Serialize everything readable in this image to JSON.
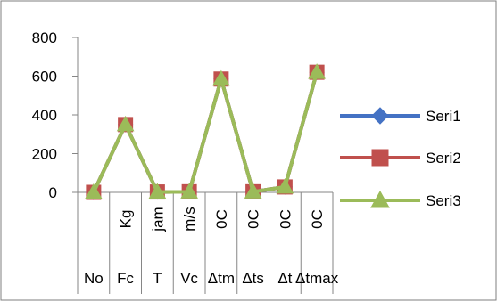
{
  "chart_data": {
    "type": "line",
    "categories": [
      {
        "top": "",
        "bottom": "No"
      },
      {
        "top": "Kg",
        "bottom": "Fc"
      },
      {
        "top": "jam",
        "bottom": "T"
      },
      {
        "top": "m/s",
        "bottom": "Vc"
      },
      {
        "top": "0C",
        "bottom": "Δtm"
      },
      {
        "top": "0C",
        "bottom": "Δts"
      },
      {
        "top": "0C",
        "bottom": "Δt"
      },
      {
        "top": "0C",
        "bottom": "Δtmax"
      }
    ],
    "series": [
      {
        "name": "Seri1",
        "color": "#4472C4",
        "marker": "diamond",
        "values": [
          0,
          350,
          2,
          3,
          585,
          3,
          28,
          620
        ]
      },
      {
        "name": "Seri2",
        "color": "#C0504D",
        "marker": "square",
        "values": [
          0,
          350,
          2,
          3,
          585,
          3,
          28,
          620
        ]
      },
      {
        "name": "Seri3",
        "color": "#9BBB59",
        "marker": "triangle",
        "values": [
          0,
          350,
          2,
          3,
          585,
          3,
          28,
          620
        ]
      }
    ],
    "yticks": [
      0,
      200,
      400,
      600,
      800
    ],
    "ylim": [
      0,
      800
    ],
    "grid": false,
    "legend_position": "right",
    "title": "",
    "xlabel": "",
    "ylabel": ""
  }
}
